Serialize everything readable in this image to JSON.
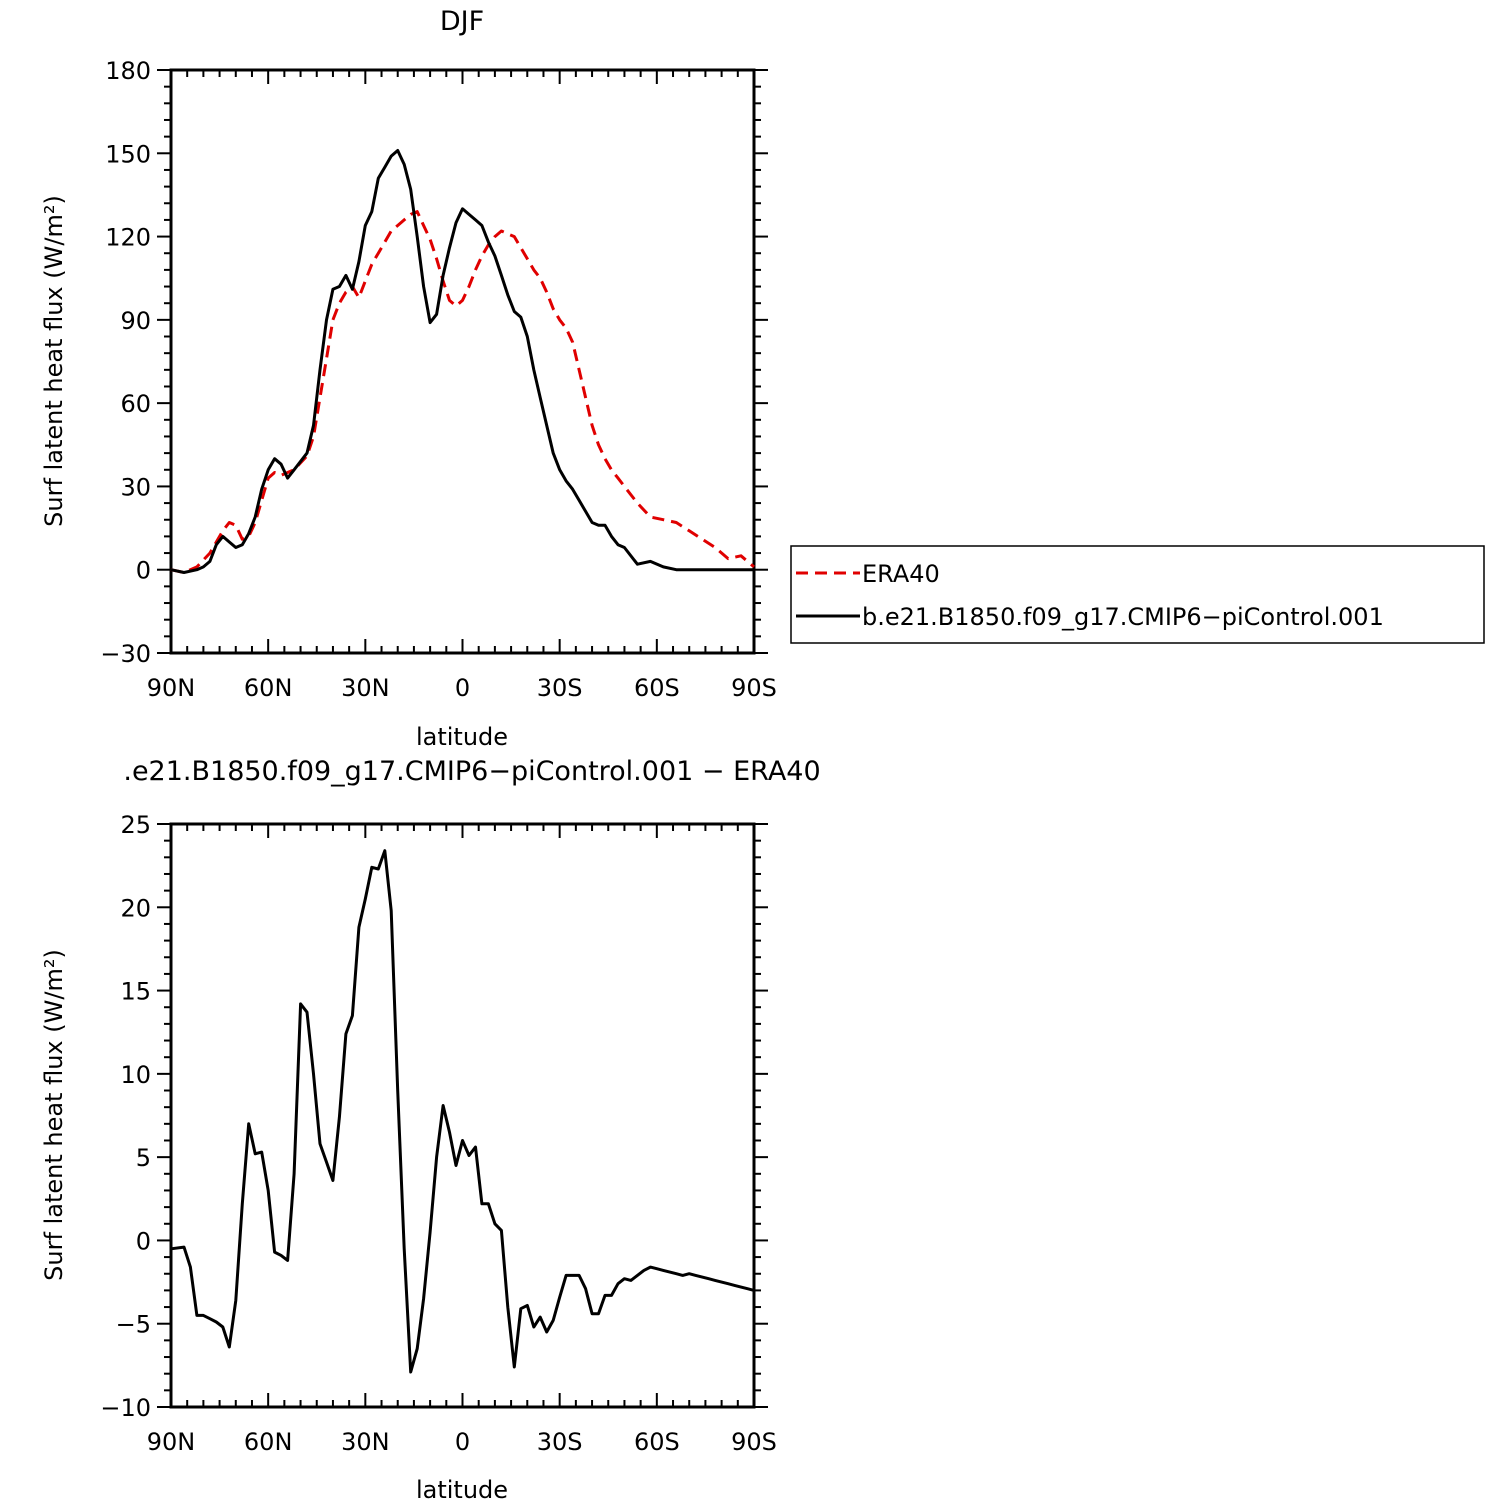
{
  "chart_data": [
    {
      "type": "line",
      "title": "DJF",
      "xlabel": "latitude",
      "ylabel": "Surf latent heat flux (W/m²)",
      "xlim": [
        90,
        -90
      ],
      "ylim": [
        -30,
        180
      ],
      "yticks": [
        -30,
        0,
        30,
        60,
        90,
        120,
        150,
        180
      ],
      "xticks": [
        90,
        60,
        30,
        0,
        -30,
        -60,
        -90
      ],
      "xtick_labels": [
        "90N",
        "60N",
        "30N",
        "0",
        "30S",
        "60S",
        "90S"
      ],
      "legend_position": "right",
      "series": [
        {
          "name": "ERA40",
          "color": "#e00000",
          "dash": true,
          "x": [
            90,
            86,
            82,
            78,
            74,
            72,
            70,
            68,
            66,
            64,
            62,
            60,
            58,
            56,
            54,
            52,
            48,
            46,
            44,
            42,
            40,
            38,
            36,
            34,
            32,
            30,
            28,
            26,
            24,
            22,
            20,
            18,
            16,
            14,
            12,
            10,
            8,
            6,
            4,
            2,
            0,
            -2,
            -4,
            -6,
            -8,
            -10,
            -12,
            -14,
            -16,
            -18,
            -20,
            -22,
            -24,
            -26,
            -28,
            -30,
            -32,
            -34,
            -36,
            -38,
            -40,
            -42,
            -44,
            -46,
            -48,
            -50,
            -54,
            -58,
            -62,
            -66,
            -70,
            -74,
            -78,
            -82,
            -86,
            -90
          ],
          "y": [
            0,
            -1,
            1,
            6,
            14,
            17,
            16,
            11,
            12,
            17,
            25,
            33,
            35,
            34,
            35,
            36,
            41,
            48,
            62,
            76,
            90,
            96,
            100,
            102,
            98,
            104,
            110,
            114,
            118,
            122,
            124,
            126,
            128,
            129,
            124,
            119,
            112,
            104,
            97,
            95,
            97,
            102,
            108,
            113,
            117,
            120,
            122,
            121,
            120,
            116,
            112,
            108,
            105,
            100,
            94,
            90,
            87,
            82,
            72,
            62,
            52,
            45,
            40,
            36,
            33,
            30,
            24,
            19,
            18,
            17,
            14,
            11,
            8,
            4,
            5,
            1
          ]
        },
        {
          "name": "b.e21.B1850.f09_g17.CMIP6−piControl.001",
          "color": "#000000",
          "dash": false,
          "x": [
            90,
            86,
            82,
            80,
            78,
            76,
            74,
            72,
            70,
            68,
            66,
            64,
            62,
            60,
            58,
            56,
            54,
            52,
            48,
            46,
            44,
            42,
            40,
            38,
            36,
            34,
            32,
            30,
            28,
            26,
            24,
            22,
            20,
            18,
            16,
            14,
            12,
            10,
            8,
            6,
            4,
            2,
            0,
            -2,
            -4,
            -6,
            -8,
            -10,
            -12,
            -14,
            -16,
            -18,
            -20,
            -22,
            -24,
            -26,
            -28,
            -30,
            -32,
            -34,
            -36,
            -38,
            -40,
            -42,
            -44,
            -46,
            -48,
            -50,
            -54,
            -58,
            -62,
            -66,
            -70,
            -74,
            -78,
            -82,
            -86,
            -88,
            -90
          ],
          "y": [
            0,
            -1,
            0,
            1,
            3,
            9,
            12,
            10,
            8,
            9,
            13,
            19,
            29,
            36,
            40,
            38,
            33,
            36,
            42,
            52,
            72,
            90,
            101,
            102,
            106,
            101,
            111,
            124,
            129,
            141,
            145,
            149,
            151,
            146,
            137,
            120,
            102,
            89,
            92,
            106,
            116,
            125,
            130,
            128,
            126,
            124,
            118,
            113,
            106,
            99,
            93,
            91,
            84,
            72,
            62,
            52,
            42,
            36,
            32,
            29,
            25,
            21,
            17,
            16,
            16,
            12,
            9,
            8,
            2,
            3,
            1,
            0,
            0,
            0,
            0,
            0,
            0,
            0,
            0
          ]
        }
      ]
    },
    {
      "type": "line",
      "title": ".e21.B1850.f09_g17.CMIP6−piControl.001  −  ERA40",
      "xlabel": "latitude",
      "ylabel": "Surf latent heat flux (W/m²)",
      "xlim": [
        90,
        -90
      ],
      "ylim": [
        -10,
        25
      ],
      "yticks": [
        -10,
        -5,
        0,
        5,
        10,
        15,
        20,
        25
      ],
      "xticks": [
        90,
        60,
        30,
        0,
        -30,
        -60,
        -90
      ],
      "xtick_labels": [
        "90N",
        "60N",
        "30N",
        "0",
        "30S",
        "60S",
        "90S"
      ],
      "series": [
        {
          "color": "#000000",
          "dash": false,
          "x": [
            90,
            86,
            84,
            82,
            80,
            78,
            76,
            74,
            72,
            70,
            68,
            66,
            64,
            62,
            60,
            58,
            56,
            54,
            52,
            50,
            48,
            46,
            44,
            42,
            40,
            38,
            36,
            34,
            32,
            30,
            28,
            26,
            24,
            22,
            20,
            18,
            16,
            14,
            12,
            10,
            8,
            6,
            4,
            2,
            0,
            -2,
            -4,
            -6,
            -8,
            -10,
            -12,
            -14,
            -16,
            -18,
            -20,
            -22,
            -24,
            -26,
            -28,
            -30,
            -32,
            -34,
            -36,
            -38,
            -40,
            -42,
            -44,
            -46,
            -48,
            -50,
            -52,
            -54,
            -56,
            -58,
            -60,
            -62,
            -64,
            -66,
            -68,
            -70,
            -72,
            -74,
            -76,
            -78,
            -80,
            -82,
            -84,
            -86,
            -88,
            -90
          ],
          "y": [
            -0.5,
            -0.4,
            -1.6,
            -4.5,
            -4.5,
            -4.7,
            -4.9,
            -5.2,
            -6.4,
            -3.6,
            2.2,
            7.0,
            5.2,
            5.3,
            3.0,
            -0.7,
            -0.9,
            -1.2,
            4.0,
            14.2,
            13.7,
            10.0,
            5.8,
            4.7,
            3.6,
            7.4,
            12.4,
            13.5,
            18.8,
            20.5,
            22.4,
            22.3,
            23.4,
            19.8,
            9.0,
            -0.5,
            -7.9,
            -6.5,
            -3.5,
            0.5,
            5.0,
            8.1,
            6.5,
            4.5,
            6.0,
            5.1,
            5.6,
            2.2,
            2.2,
            1.0,
            0.6,
            -4.0,
            -7.6,
            -4.1,
            -3.9,
            -5.2,
            -4.6,
            -5.5,
            -4.8,
            -3.4,
            -2.1,
            -2.1,
            -2.1,
            -2.9,
            -4.4,
            -4.4,
            -3.3,
            -3.3,
            -2.6,
            -2.3,
            -2.4,
            -2.1,
            -1.8,
            -1.6,
            -1.7,
            -1.8,
            -1.9,
            -2.0,
            -2.1,
            -2.0,
            -2.1,
            -2.2,
            -2.3,
            -2.4,
            -2.5,
            -2.6,
            -2.7,
            -2.8,
            -2.9,
            -3.0
          ]
        }
      ]
    }
  ]
}
